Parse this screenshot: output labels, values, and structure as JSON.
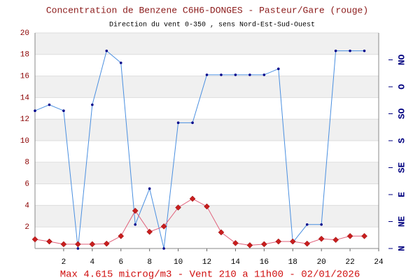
{
  "chart_data": {
    "type": "line",
    "title": "Concentration de Benzene C6H6-DONGES - Pasteur/Gare (rouge)",
    "subtitle": "Direction du vent 0-350 , sens Nord-Est-Sud-Ouest",
    "footer": "Max 4.615 microg/m3 - Vent 210  a 11h00 - 02/01/2026",
    "x": [
      0,
      1,
      2,
      3,
      4,
      5,
      6,
      7,
      8,
      9,
      10,
      11,
      12,
      13,
      14,
      15,
      16,
      17,
      18,
      19,
      20,
      21,
      22,
      23
    ],
    "xlim": [
      0,
      24
    ],
    "xticks": [
      2,
      4,
      6,
      8,
      10,
      12,
      14,
      16,
      18,
      20,
      22,
      24
    ],
    "ylim": [
      0,
      20
    ],
    "yticks": [
      2,
      4,
      6,
      8,
      10,
      12,
      14,
      16,
      18,
      20
    ],
    "y2lim": [
      0,
      360
    ],
    "y2ticks": [
      {
        "value": 0,
        "label": "N"
      },
      {
        "value": 45,
        "label": "NE"
      },
      {
        "value": 90,
        "label": "E"
      },
      {
        "value": 135,
        "label": "SE"
      },
      {
        "value": 180,
        "label": "S"
      },
      {
        "value": 225,
        "label": "SO"
      },
      {
        "value": 270,
        "label": "O"
      },
      {
        "value": 315,
        "label": "NO"
      }
    ],
    "grid": true,
    "series": [
      {
        "name": "Direction du vent",
        "color": "#4a8fe0",
        "axis": "y2",
        "values": [
          230,
          240,
          230,
          0,
          240,
          330,
          310,
          40,
          100,
          0,
          210,
          210,
          290,
          290,
          290,
          290,
          290,
          300,
          10,
          40,
          40,
          330,
          330,
          330
        ]
      },
      {
        "name": "Benzene",
        "color": "#e0607a",
        "values": [
          0.85,
          0.65,
          0.4,
          0.4,
          0.4,
          0.45,
          1.15,
          3.5,
          1.55,
          2.05,
          3.8,
          4.615,
          3.9,
          1.5,
          0.5,
          0.3,
          0.4,
          0.65,
          0.65,
          0.45,
          0.9,
          0.8,
          1.15,
          1.15
        ]
      }
    ]
  }
}
